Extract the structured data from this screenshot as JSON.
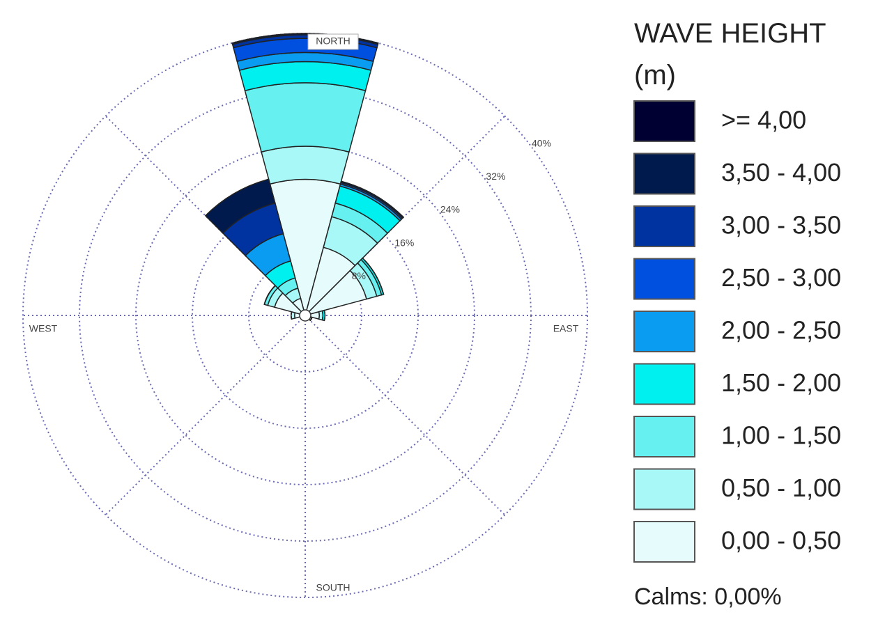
{
  "chart_data": {
    "type": "windrose",
    "categories": [
      null,
      null,
      null,
      null,
      null,
      null,
      null,
      null,
      null,
      null,
      null,
      null
    ],
    "compass_labels": [
      "NORTH",
      "EAST",
      "SOUTH",
      "WEST"
    ],
    "rlim": [
      0,
      40
    ],
    "rticks": [
      {
        "value": 8,
        "label": "8%"
      },
      {
        "value": 16,
        "label": "16%"
      },
      {
        "value": 24,
        "label": "24%"
      },
      {
        "value": 32,
        "label": "32%"
      },
      {
        "value": 40,
        "label": "40%"
      }
    ],
    "legend_title": "WAVE HEIGHT (m)",
    "calms": "Calms: 0,00%",
    "series": [
      {
        "name": ">= 4,00",
        "color": "#000033",
        "values": [
          0,
          0,
          0,
          0,
          0,
          0,
          0,
          0,
          0,
          0,
          0,
          0
        ]
      },
      {
        "name": "3,50 - 4,00",
        "color": "#001a4d",
        "values": [
          0.2,
          0.2,
          0,
          0,
          0,
          0,
          0,
          0,
          0,
          0,
          0,
          3.5
        ]
      },
      {
        "name": "3,00 - 3,50",
        "color": "#0033a0",
        "values": [
          0.5,
          0,
          0,
          0,
          0,
          0,
          0,
          0,
          0,
          0,
          0,
          4.5
        ]
      },
      {
        "name": "2,50 - 3,00",
        "color": "#0050e0",
        "values": [
          2,
          0.2,
          0,
          0,
          0,
          0,
          0,
          0,
          0,
          0,
          0,
          0
        ]
      },
      {
        "name": "2,00 - 2,50",
        "color": "#0a9cf0",
        "values": [
          1.3,
          0.3,
          0,
          0,
          0,
          0,
          0,
          0,
          0,
          0,
          0,
          4
        ]
      },
      {
        "name": "1,50 - 2,00",
        "color": "#00f0f0",
        "values": [
          3,
          2.5,
          0.3,
          0.3,
          0,
          0,
          0,
          0,
          0,
          0,
          0,
          2.5
        ]
      },
      {
        "name": "1,00 - 1,50",
        "color": "#66f0f0",
        "values": [
          9,
          2,
          0.7,
          0,
          0,
          0,
          0,
          0,
          0,
          0,
          0.5,
          1.5
        ]
      },
      {
        "name": "0,50 - 1,00",
        "color": "#a8f8f8",
        "values": [
          4.7,
          4.5,
          1.5,
          0.5,
          0,
          0,
          0,
          0,
          0,
          0.5,
          1,
          1.5
        ]
      },
      {
        "name": "0,00 - 0,50",
        "color": "#e6fcfc",
        "values": [
          19.3,
          10,
          9,
          2,
          1,
          0,
          0,
          0,
          0,
          1.5,
          4.5,
          2.5
        ]
      }
    ]
  }
}
